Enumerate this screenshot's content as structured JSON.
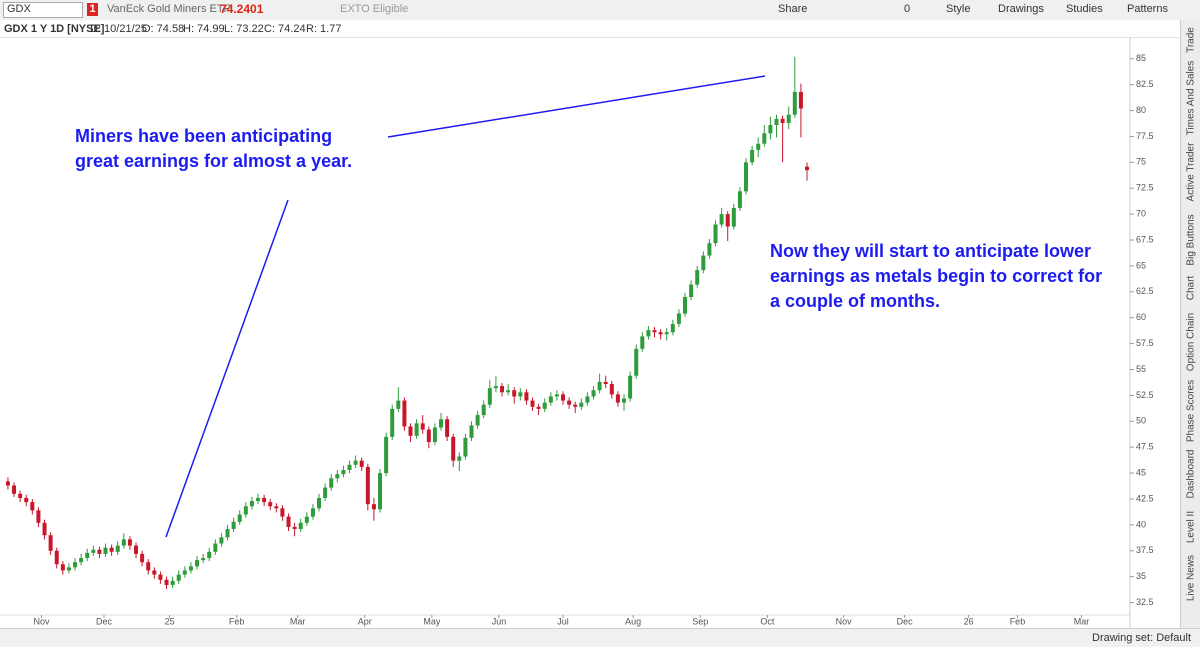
{
  "toolbar": {
    "symbol": "GDX",
    "alert_count": "1",
    "name": "VanEck Gold Miners ETF",
    "price": "74.2401",
    "status": "EXTO Eligible",
    "share": "Share",
    "counter": "0",
    "style": "Style",
    "drawings": "Drawings",
    "studies": "Studies",
    "patterns": "Patterns"
  },
  "info_bar": [
    "GDX 1 Y 1D [NYSE]",
    "D: 10/21/25",
    "O: 74.58",
    "H: 74.99",
    "L: 73.22",
    "C: 74.24",
    "R: 1.77"
  ],
  "sidebar": [
    "Trade",
    "Times And Sales",
    "Active Trader",
    "Big Buttons",
    "Chart",
    "Option Chain",
    "Phase Scores",
    "Dashboard",
    "Level II",
    "Live News"
  ],
  "footer": {
    "drawing_set": "Drawing set: Default"
  },
  "chart_data": {
    "type": "candlestick",
    "up_color": "#2f9c3c",
    "down_color": "#c8162b",
    "annotation_color": "#1c1cf0",
    "annotations": [
      [
        "Miners have been anticipating",
        "great earnings for almost a year."
      ],
      [
        "Now they will start to anticipate lower",
        "earnings as metals begin to correct for",
        "a couple of months."
      ]
    ],
    "xlim": [
      -1.6,
      368.9
    ],
    "ylim": [
      31.3,
      87.1
    ],
    "yticks": [
      32.5,
      35,
      37.5,
      40,
      42.5,
      45,
      47.5,
      50,
      52.5,
      55,
      57.5,
      60,
      62.5,
      65,
      67.5,
      70,
      72.5,
      75,
      77.5,
      80,
      82.5,
      85
    ],
    "xticks": [
      {
        "value": 12,
        "label": "Nov"
      },
      {
        "value": 32.5,
        "label": "Dec"
      },
      {
        "value": 54,
        "label": "25"
      },
      {
        "value": 76,
        "label": "Feb"
      },
      {
        "value": 96,
        "label": "Mar"
      },
      {
        "value": 118,
        "label": "Apr"
      },
      {
        "value": 140,
        "label": "May"
      },
      {
        "value": 162,
        "label": "Jun"
      },
      {
        "value": 183,
        "label": "Jul"
      },
      {
        "value": 206,
        "label": "Aug"
      },
      {
        "value": 228,
        "label": "Sep"
      },
      {
        "value": 250,
        "label": "Oct"
      },
      {
        "value": 275,
        "label": "Nov"
      },
      {
        "value": 295,
        "label": "Dec"
      },
      {
        "value": 316,
        "label": "26"
      },
      {
        "value": 332,
        "label": "Feb"
      },
      {
        "value": 353,
        "label": "Mar"
      }
    ],
    "x": [
      1,
      3,
      5,
      7,
      9,
      11,
      13,
      15,
      17,
      19,
      21,
      23,
      25,
      27,
      29,
      31,
      33,
      35,
      37,
      39,
      41,
      43,
      45,
      47,
      49,
      51,
      53,
      55,
      57,
      59,
      61,
      63,
      65,
      67,
      69,
      71,
      73,
      75,
      77,
      79,
      81,
      83,
      85,
      87,
      89,
      91,
      93,
      95,
      97,
      99,
      101,
      103,
      105,
      107,
      109,
      111,
      113,
      115,
      117,
      119,
      121,
      123,
      125,
      127,
      129,
      131,
      133,
      135,
      137,
      139,
      141,
      143,
      145,
      147,
      149,
      151,
      153,
      155,
      157,
      159,
      161,
      163,
      165,
      167,
      169,
      171,
      173,
      175,
      177,
      179,
      181,
      183,
      185,
      187,
      189,
      191,
      193,
      195,
      197,
      199,
      201,
      203,
      205,
      207,
      209,
      211,
      213,
      215,
      217,
      219,
      221,
      223,
      225,
      227,
      229,
      231,
      233,
      235,
      237,
      239,
      241,
      243,
      245,
      247,
      249,
      251,
      253,
      255,
      257,
      259,
      261,
      263
    ],
    "open": [
      44.2,
      43.8,
      43.0,
      42.6,
      42.2,
      41.4,
      40.2,
      39.0,
      37.5,
      36.2,
      35.6,
      35.9,
      36.4,
      36.8,
      37.3,
      37.6,
      37.2,
      37.8,
      37.4,
      38.0,
      38.6,
      38.0,
      37.2,
      36.4,
      35.6,
      35.2,
      34.7,
      34.2,
      34.6,
      35.2,
      35.6,
      36.0,
      36.6,
      36.8,
      37.4,
      38.2,
      38.8,
      39.6,
      40.3,
      41.0,
      41.8,
      42.3,
      42.6,
      42.2,
      41.8,
      41.6,
      40.8,
      39.8,
      39.6,
      40.2,
      40.8,
      41.6,
      42.6,
      43.6,
      44.5,
      44.9,
      45.3,
      45.8,
      46.2,
      45.6,
      42.0,
      41.5,
      45.0,
      48.5,
      51.2,
      52.0,
      49.5,
      48.6,
      49.8,
      49.2,
      48.0,
      49.4,
      50.2,
      48.5,
      46.2,
      46.6,
      48.4,
      49.6,
      50.6,
      51.6,
      53.2,
      53.4,
      52.8,
      53.0,
      52.4,
      52.8,
      52.0,
      51.4,
      51.2,
      51.8,
      52.4,
      52.6,
      52.0,
      51.6,
      51.4,
      51.8,
      52.4,
      53.0,
      53.8,
      53.6,
      52.6,
      51.8,
      52.2,
      54.4,
      57.0,
      58.2,
      58.8,
      58.6,
      58.4,
      58.6,
      59.4,
      60.4,
      62.0,
      63.2,
      64.6,
      66.0,
      67.2,
      69.0,
      70.0,
      68.8,
      70.6,
      72.2,
      75.0,
      76.2,
      76.8,
      77.8,
      78.6,
      79.2,
      78.8,
      79.6,
      81.8,
      74.58
    ],
    "high": [
      44.6,
      44.1,
      43.3,
      42.9,
      42.5,
      41.7,
      40.5,
      39.3,
      37.8,
      36.5,
      36.3,
      36.8,
      37.2,
      37.7,
      38.0,
      37.9,
      38.2,
      38.1,
      38.4,
      39.2,
      38.9,
      38.3,
      37.5,
      36.7,
      35.9,
      35.5,
      35.0,
      35.0,
      35.6,
      36.0,
      36.4,
      37.0,
      37.2,
      37.8,
      38.6,
      39.2,
      40.0,
      40.7,
      41.4,
      42.2,
      42.7,
      43.0,
      42.9,
      42.5,
      42.1,
      41.9,
      41.1,
      40.2,
      40.6,
      41.2,
      42.0,
      43.0,
      44.0,
      44.9,
      45.3,
      45.7,
      46.2,
      46.7,
      46.5,
      45.9,
      42.6,
      45.4,
      48.9,
      51.6,
      53.3,
      52.3,
      49.8,
      50.2,
      50.6,
      49.5,
      49.8,
      50.8,
      50.5,
      48.8,
      47.0,
      48.8,
      50.0,
      51.0,
      52.0,
      54.0,
      54.4,
      53.7,
      53.6,
      53.3,
      53.2,
      53.1,
      52.3,
      51.7,
      52.2,
      52.8,
      53.0,
      52.9,
      52.3,
      51.9,
      52.2,
      52.8,
      53.4,
      54.6,
      54.4,
      53.9,
      52.9,
      52.6,
      54.8,
      57.4,
      58.6,
      59.2,
      59.1,
      58.9,
      59.0,
      59.8,
      60.8,
      62.4,
      63.6,
      65.0,
      66.4,
      67.6,
      69.4,
      70.6,
      70.3,
      71.0,
      72.6,
      75.4,
      76.6,
      77.4,
      78.6,
      79.4,
      79.6,
      79.5,
      80.4,
      85.2,
      82.6,
      74.99
    ],
    "low": [
      43.4,
      42.7,
      42.2,
      41.8,
      41.0,
      39.8,
      38.6,
      37.1,
      35.8,
      35.2,
      35.3,
      35.6,
      36.1,
      36.5,
      37.0,
      36.8,
      36.9,
      37.0,
      37.1,
      37.7,
      37.6,
      36.8,
      36.0,
      35.2,
      34.8,
      34.3,
      33.8,
      33.9,
      34.3,
      34.9,
      35.3,
      35.7,
      36.3,
      36.5,
      37.1,
      37.9,
      38.5,
      39.3,
      40.0,
      40.7,
      41.5,
      42.0,
      41.8,
      41.4,
      41.2,
      40.4,
      39.4,
      38.9,
      39.3,
      39.9,
      40.5,
      41.3,
      42.3,
      43.3,
      44.1,
      44.6,
      45.0,
      45.5,
      45.2,
      41.4,
      40.4,
      41.2,
      44.7,
      48.2,
      50.9,
      49.1,
      48.0,
      48.3,
      48.8,
      47.4,
      47.7,
      49.1,
      48.1,
      45.6,
      45.2,
      46.3,
      48.1,
      49.3,
      50.3,
      51.3,
      52.8,
      52.4,
      52.5,
      51.7,
      52.0,
      51.6,
      51.0,
      50.6,
      50.9,
      51.5,
      52.0,
      51.6,
      51.2,
      50.8,
      51.1,
      51.5,
      52.1,
      52.7,
      53.2,
      52.2,
      51.4,
      51.0,
      51.9,
      54.1,
      56.7,
      57.9,
      58.1,
      57.9,
      57.8,
      58.3,
      59.1,
      60.1,
      61.7,
      62.9,
      64.3,
      65.7,
      66.9,
      68.7,
      67.4,
      68.5,
      70.3,
      71.9,
      74.7,
      75.5,
      76.5,
      77.2,
      77.4,
      75.0,
      78.2,
      79.3,
      77.4,
      73.22
    ],
    "close": [
      43.8,
      43.0,
      42.6,
      42.2,
      41.4,
      40.2,
      39.0,
      37.5,
      36.2,
      35.6,
      35.9,
      36.4,
      36.8,
      37.3,
      37.6,
      37.2,
      37.8,
      37.4,
      38.0,
      38.6,
      38.0,
      37.2,
      36.4,
      35.6,
      35.2,
      34.7,
      34.2,
      34.6,
      35.2,
      35.6,
      36.0,
      36.6,
      36.8,
      37.4,
      38.2,
      38.8,
      39.6,
      40.3,
      41.0,
      41.8,
      42.3,
      42.6,
      42.2,
      41.8,
      41.6,
      40.8,
      39.8,
      39.6,
      40.2,
      40.8,
      41.6,
      42.6,
      43.6,
      44.5,
      44.9,
      45.3,
      45.8,
      46.2,
      45.6,
      42.0,
      41.5,
      45.0,
      48.5,
      51.2,
      52.0,
      49.5,
      48.6,
      49.8,
      49.2,
      48.0,
      49.4,
      50.2,
      48.5,
      46.2,
      46.6,
      48.4,
      49.6,
      50.6,
      51.6,
      53.2,
      53.4,
      52.8,
      53.0,
      52.4,
      52.8,
      52.0,
      51.4,
      51.2,
      51.8,
      52.4,
      52.6,
      52.0,
      51.6,
      51.4,
      51.8,
      52.4,
      53.0,
      53.8,
      53.6,
      52.6,
      51.8,
      52.2,
      54.4,
      57.0,
      58.2,
      58.8,
      58.6,
      58.4,
      58.6,
      59.4,
      60.4,
      62.0,
      63.2,
      64.6,
      66.0,
      67.2,
      69.0,
      70.0,
      68.8,
      70.6,
      72.2,
      75.0,
      76.2,
      76.8,
      77.8,
      78.6,
      79.2,
      78.8,
      79.6,
      81.8,
      80.2,
      74.24
    ]
  }
}
